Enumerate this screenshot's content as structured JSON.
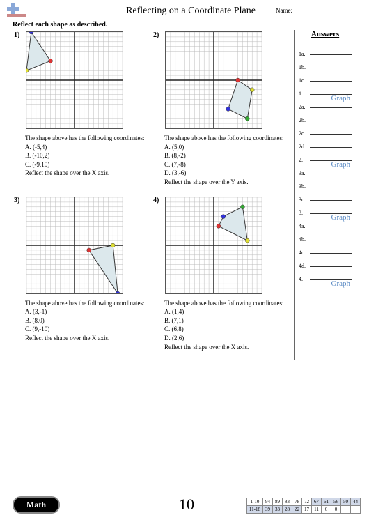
{
  "header": {
    "title": "Reflecting on a Coordinate Plane",
    "name_label": "Name:"
  },
  "instruction": "Reflect each shape as described.",
  "problems": [
    {
      "num": "1)",
      "intro": "The shape above has the following coordinates:",
      "coords": [
        "A. (-5,4)",
        "B. (-10,2)",
        "C. (-9,10)"
      ],
      "task": "Reflect the shape over the X axis.",
      "points": [
        {
          "x": -5,
          "y": 4,
          "c": "#d33"
        },
        {
          "x": -10,
          "y": 2,
          "c": "#dd3"
        },
        {
          "x": -9,
          "y": 10,
          "c": "#33d"
        }
      ],
      "fill": "#dce8ec"
    },
    {
      "num": "2)",
      "intro": "The shape above has the following coordinates:",
      "coords": [
        "A. (5,0)",
        "B. (8,-2)",
        "C. (7,-8)",
        "D. (3,-6)"
      ],
      "task": "Reflect the shape over the Y axis.",
      "points": [
        {
          "x": 5,
          "y": 0,
          "c": "#d33"
        },
        {
          "x": 8,
          "y": -2,
          "c": "#dd3"
        },
        {
          "x": 7,
          "y": -8,
          "c": "#3a3"
        },
        {
          "x": 3,
          "y": -6,
          "c": "#33d"
        }
      ],
      "fill": "#dce8ec"
    },
    {
      "num": "3)",
      "intro": "The shape above has the following coordinates:",
      "coords": [
        "A. (3,-1)",
        "B. (8,0)",
        "C. (9,-10)"
      ],
      "task": "Reflect the shape over the X axis.",
      "points": [
        {
          "x": 3,
          "y": -1,
          "c": "#d33"
        },
        {
          "x": 8,
          "y": 0,
          "c": "#dd3"
        },
        {
          "x": 9,
          "y": -10,
          "c": "#33d"
        }
      ],
      "fill": "#dce8ec"
    },
    {
      "num": "4)",
      "intro": "The shape above has the following coordinates:",
      "coords": [
        "A. (1,4)",
        "B. (7,1)",
        "C. (6,8)",
        "D. (2,6)"
      ],
      "task": "Reflect the shape over the X axis.",
      "points": [
        {
          "x": 1,
          "y": 4,
          "c": "#d33"
        },
        {
          "x": 7,
          "y": 1,
          "c": "#dd3"
        },
        {
          "x": 6,
          "y": 8,
          "c": "#3a3"
        },
        {
          "x": 2,
          "y": 6,
          "c": "#33d"
        }
      ],
      "fill": "#dce8ec"
    }
  ],
  "answers": {
    "title": "Answers",
    "rows": [
      {
        "label": "1a."
      },
      {
        "label": "1b."
      },
      {
        "label": "1c."
      },
      {
        "label": "1.",
        "val": "Graph"
      },
      {
        "label": "2a."
      },
      {
        "label": "2b."
      },
      {
        "label": "2c."
      },
      {
        "label": "2d."
      },
      {
        "label": "2.",
        "val": "Graph"
      },
      {
        "label": "3a."
      },
      {
        "label": "3b."
      },
      {
        "label": "3c."
      },
      {
        "label": "3.",
        "val": "Graph"
      },
      {
        "label": "4a."
      },
      {
        "label": "4b."
      },
      {
        "label": "4c."
      },
      {
        "label": "4d."
      },
      {
        "label": "4.",
        "val": "Graph"
      }
    ]
  },
  "footer": {
    "math": "Math",
    "page": "10",
    "scores": {
      "labels": [
        "1-10",
        "11-18"
      ],
      "row1": [
        "94",
        "89",
        "83",
        "78",
        "72",
        "67",
        "61",
        "56",
        "50",
        "44"
      ],
      "row2": [
        "39",
        "33",
        "28",
        "22",
        "17",
        "11",
        "6",
        "0"
      ]
    }
  },
  "grid": {
    "range": 10,
    "cell": 7,
    "axis_color": "#222",
    "grid_color": "#bbb"
  }
}
